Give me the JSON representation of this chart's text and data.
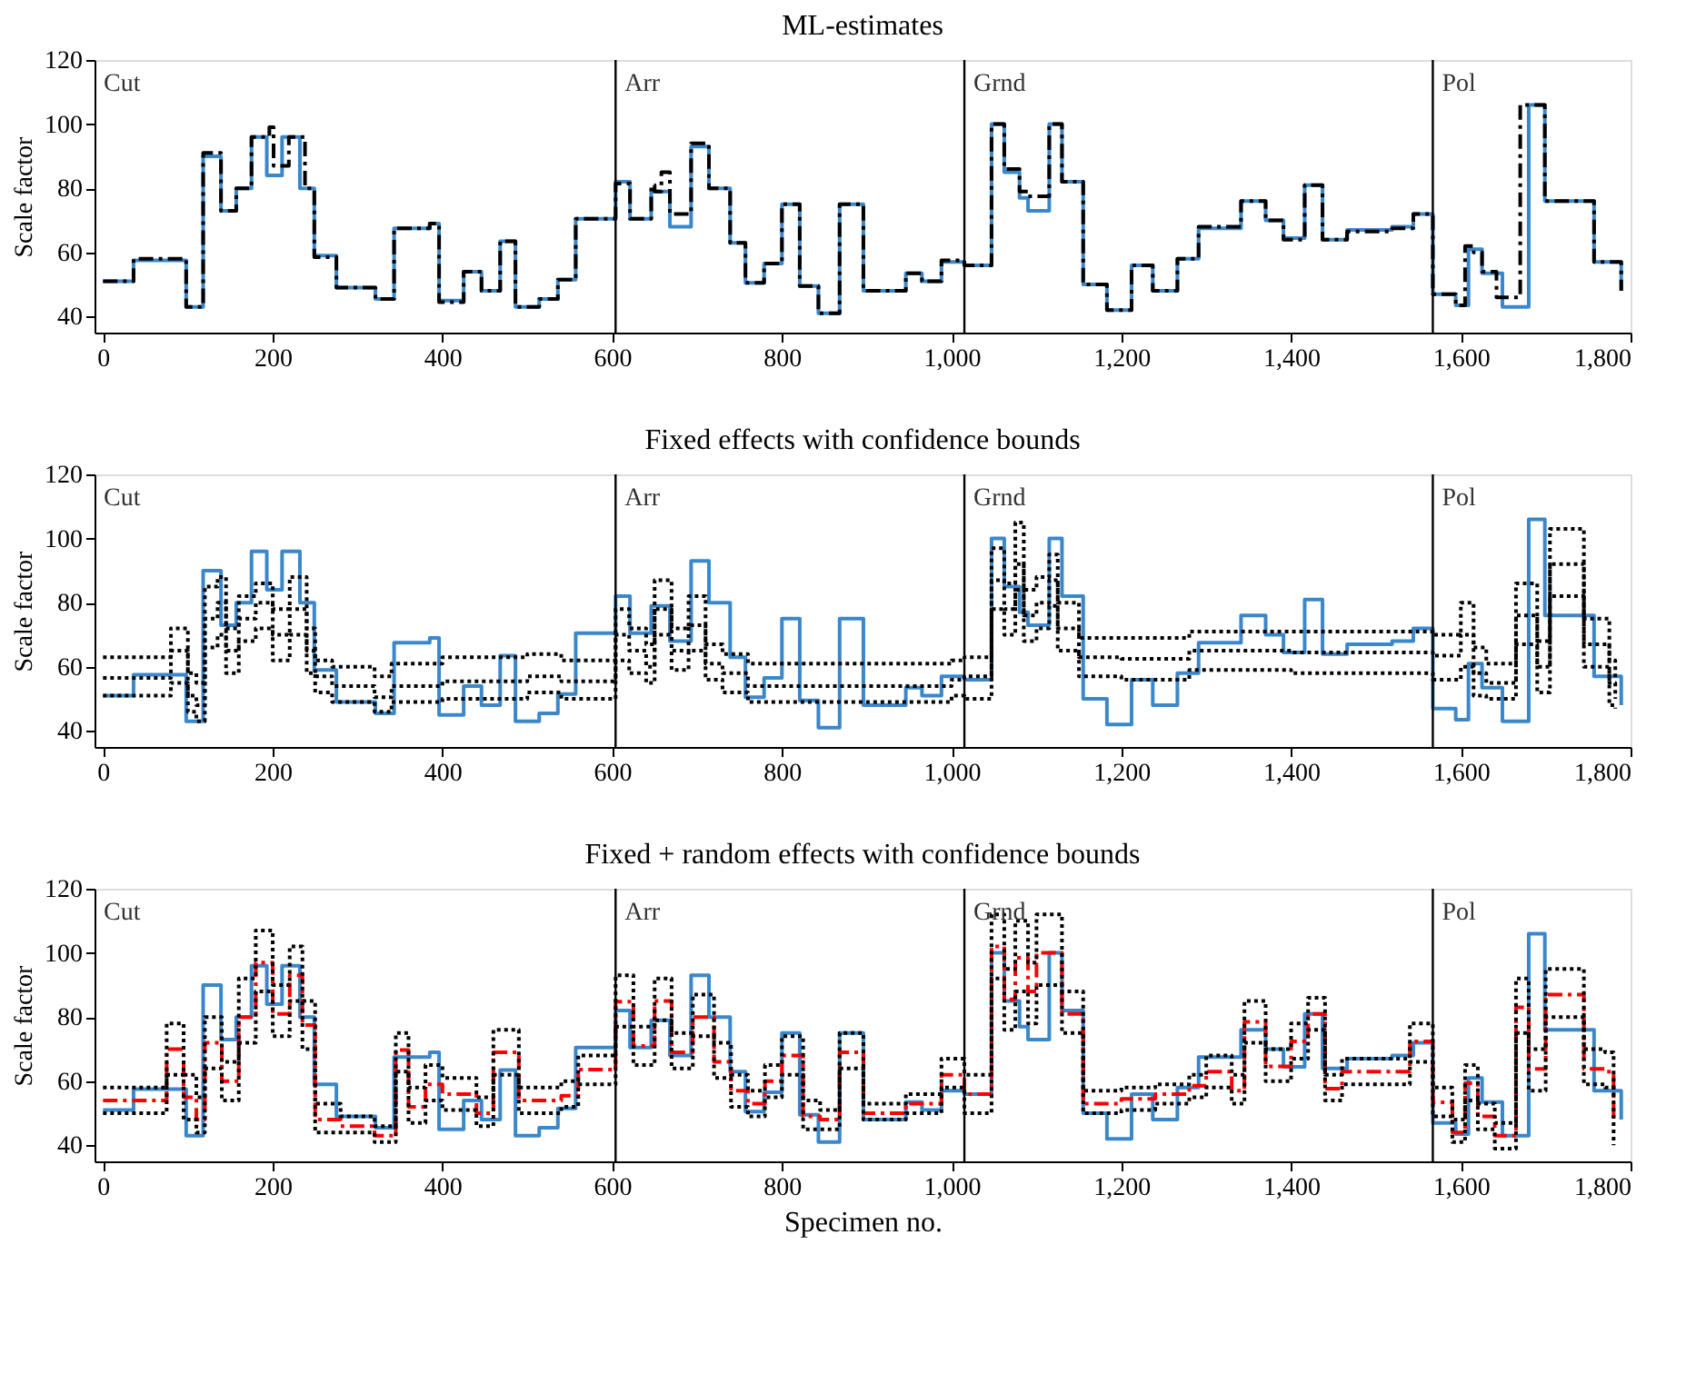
{
  "chart_data": [
    {
      "type": "step",
      "title": "ML-estimates",
      "ylabel": "Scale factor",
      "xlim": [
        -10,
        1800
      ],
      "ylim": [
        35,
        120
      ],
      "xticks": [
        0,
        200,
        400,
        600,
        800,
        {
          "value": 1000,
          "label": "1,000"
        },
        {
          "value": 1200,
          "label": "1,200"
        },
        {
          "value": 1400,
          "label": "1,400"
        },
        {
          "value": 1600,
          "label": "1,600"
        },
        {
          "value": 1800,
          "label": "1,800"
        }
      ],
      "yticks": [
        40,
        60,
        80,
        100,
        120
      ],
      "ref_lines": [
        {
          "axis": "x",
          "value": 604,
          "label": "Arr"
        },
        {
          "axis": "x",
          "value": 1015,
          "label": "Grnd"
        },
        {
          "axis": "x",
          "value": 1567,
          "label": "Pol"
        }
      ],
      "annotations": [
        "Cut"
      ],
      "series": [
        {
          "color": "#3a87cc",
          "line_style": "solid",
          "x": [
            0,
            36,
            98,
            118,
            139,
            157,
            175,
            193,
            211,
            232,
            249,
            275,
            321,
            343,
            385,
            396,
            425,
            446,
            468,
            486,
            514,
            536,
            557,
            604,
            621,
            646,
            668,
            693,
            714,
            739,
            757,
            779,
            800,
            821,
            843,
            868,
            896,
            946,
            965,
            988,
            1015,
            1047,
            1062,
            1080,
            1090,
            1115,
            1130,
            1155,
            1183,
            1212,
            1237,
            1266,
            1291,
            1341,
            1370,
            1391,
            1416,
            1437,
            1466,
            1519,
            1544,
            1567,
            1594,
            1609,
            1625,
            1649,
            1680,
            1699,
            1757,
            1789
          ],
          "values": [
            51,
            57.5,
            43,
            90,
            73,
            80,
            96,
            84,
            96,
            80,
            59,
            49,
            45.5,
            67.5,
            69,
            45,
            54,
            48,
            63.5,
            43,
            45.5,
            51.5,
            70.5,
            82,
            70.5,
            79,
            68,
            93,
            80,
            63,
            50.5,
            56.5,
            75,
            49.5,
            41,
            75,
            48,
            53.5,
            51,
            57,
            56,
            100,
            85,
            77,
            73,
            100,
            82,
            50,
            42,
            56,
            48,
            58,
            67.5,
            76,
            70,
            64.5,
            81,
            64,
            67,
            68,
            72,
            47,
            43.5,
            61,
            53.5,
            43,
            106,
            76,
            57,
            48
          ]
        },
        {
          "color": "#000000",
          "line_style": "dashed",
          "x": [
            0,
            36,
            98,
            118,
            139,
            157,
            175,
            196,
            201,
            219,
            238,
            249,
            275,
            321,
            343,
            385,
            396,
            425,
            446,
            468,
            486,
            514,
            536,
            557,
            604,
            621,
            646,
            650,
            658,
            668,
            693,
            714,
            739,
            757,
            779,
            800,
            821,
            843,
            868,
            896,
            946,
            965,
            988,
            1015,
            1047,
            1062,
            1080,
            1090,
            1115,
            1130,
            1155,
            1183,
            1212,
            1237,
            1266,
            1291,
            1341,
            1370,
            1391,
            1416,
            1437,
            1466,
            1519,
            1544,
            1567,
            1594,
            1605,
            1615,
            1625,
            1642,
            1670,
            1699,
            1757,
            1789
          ],
          "values": [
            51,
            58,
            43,
            91,
            73,
            80,
            96,
            99,
            87,
            96,
            80,
            58.5,
            49,
            45.5,
            67.5,
            69,
            44.5,
            54,
            48,
            63.5,
            43,
            45.5,
            51.5,
            70.5,
            81.5,
            70.5,
            81,
            79,
            85,
            72,
            94,
            80,
            63,
            50.5,
            56.5,
            75,
            49.5,
            41,
            75,
            48,
            53.5,
            51,
            57.5,
            56,
            100,
            86,
            79,
            77.5,
            100,
            82,
            50,
            42,
            56,
            48,
            58,
            68,
            76,
            70,
            64,
            81,
            64,
            66.5,
            67.5,
            72,
            47,
            43.5,
            62,
            60,
            54,
            46,
            106,
            76,
            57,
            48
          ]
        }
      ]
    },
    {
      "type": "step",
      "title": "Fixed effects with confidence bounds",
      "ylabel": "Scale factor",
      "xlim": [
        -10,
        1800
      ],
      "ylim": [
        35,
        120
      ],
      "xticks": [
        0,
        200,
        400,
        600,
        800,
        {
          "value": 1000,
          "label": "1,000"
        },
        {
          "value": 1200,
          "label": "1,200"
        },
        {
          "value": 1400,
          "label": "1,400"
        },
        {
          "value": 1600,
          "label": "1,600"
        },
        {
          "value": 1800,
          "label": "1,800"
        }
      ],
      "yticks": [
        40,
        60,
        80,
        100,
        120
      ],
      "ref_lines": [
        {
          "axis": "x",
          "value": 604,
          "label": "Arr"
        },
        {
          "axis": "x",
          "value": 1015,
          "label": "Grnd"
        },
        {
          "axis": "x",
          "value": 1567,
          "label": "Pol"
        }
      ],
      "annotations": [
        "Cut"
      ],
      "series": [
        {
          "color": "#3a87cc",
          "line_style": "solid",
          "x": [
            0,
            36,
            98,
            118,
            139,
            157,
            175,
            193,
            211,
            232,
            249,
            275,
            321,
            343,
            385,
            396,
            425,
            446,
            468,
            486,
            514,
            536,
            557,
            604,
            621,
            646,
            668,
            693,
            714,
            739,
            757,
            779,
            800,
            821,
            843,
            868,
            896,
            946,
            965,
            988,
            1015,
            1047,
            1062,
            1080,
            1090,
            1115,
            1130,
            1155,
            1183,
            1212,
            1237,
            1266,
            1291,
            1341,
            1370,
            1391,
            1416,
            1437,
            1466,
            1519,
            1544,
            1567,
            1594,
            1609,
            1625,
            1649,
            1680,
            1699,
            1757,
            1789
          ],
          "values": [
            51,
            57.5,
            43,
            90,
            73,
            80,
            96,
            84,
            96,
            80,
            59,
            49,
            45.5,
            67.5,
            69,
            45,
            54,
            48,
            63.5,
            43,
            45.5,
            51.5,
            70.5,
            82,
            70.5,
            79,
            68,
            93,
            80,
            63,
            50.5,
            56.5,
            75,
            49.5,
            41,
            75,
            48,
            53.5,
            51,
            57,
            56,
            100,
            85,
            77,
            73,
            100,
            82,
            50,
            42,
            56,
            48,
            58,
            67.5,
            76,
            70,
            64.5,
            81,
            64,
            67,
            68,
            72,
            47,
            43.5,
            61,
            53.5,
            43,
            106,
            76,
            57,
            48
          ]
        },
        {
          "color": "#000000",
          "line_style": "dotted",
          "x": [
            0,
            80,
            100,
            110,
            120,
            135,
            145,
            160,
            180,
            200,
            220,
            240,
            250,
            270,
            320,
            340,
            400,
            500,
            540,
            604,
            620,
            640,
            650,
            670,
            690,
            710,
            730,
            760,
            1000,
            1015,
            1047,
            1062,
            1075,
            1085,
            1100,
            1115,
            1125,
            1150,
            1200,
            1280,
            1400,
            1567,
            1600,
            1615,
            1630,
            1665,
            1690,
            1705,
            1745,
            1775,
            1782
          ],
          "values": [
            56.5,
            65,
            51,
            48,
            75,
            80,
            65,
            75,
            80,
            70,
            78,
            65,
            57,
            54,
            50.5,
            54,
            55.5,
            57,
            55.5,
            70,
            65,
            60,
            78,
            65,
            73,
            61,
            58,
            54,
            56,
            57,
            87,
            78,
            92,
            76,
            80,
            87,
            72,
            63,
            62.5,
            65,
            64.5,
            63.5,
            70,
            58,
            55,
            76,
            60,
            92,
            67,
            55,
            50
          ]
        },
        {
          "color": "#000000",
          "line_style": "dotted",
          "x": [
            0,
            80,
            100,
            110,
            120,
            135,
            145,
            160,
            180,
            200,
            220,
            240,
            250,
            270,
            320,
            340,
            400,
            500,
            540,
            604,
            620,
            640,
            650,
            670,
            690,
            710,
            730,
            760,
            1000,
            1015,
            1047,
            1062,
            1075,
            1085,
            1100,
            1115,
            1125,
            1150,
            1200,
            1280,
            1400,
            1567,
            1600,
            1615,
            1630,
            1665,
            1690,
            1705,
            1745,
            1775,
            1782
          ],
          "values": [
            51,
            55,
            46,
            43,
            66,
            70,
            58,
            68,
            72,
            62,
            70,
            58,
            52,
            49,
            46,
            49,
            50,
            52,
            50,
            62,
            58,
            55,
            70,
            59,
            65,
            56,
            52,
            49,
            51,
            50,
            78,
            70,
            84,
            68,
            72,
            79,
            65,
            57,
            56,
            59,
            58,
            56,
            60,
            51,
            50,
            67,
            52,
            82,
            60,
            48,
            47
          ]
        },
        {
          "color": "#000000",
          "line_style": "dotted",
          "x": [
            0,
            80,
            100,
            110,
            120,
            135,
            145,
            160,
            180,
            200,
            220,
            240,
            250,
            270,
            320,
            340,
            400,
            500,
            540,
            604,
            620,
            640,
            650,
            670,
            690,
            710,
            730,
            760,
            1000,
            1015,
            1047,
            1062,
            1075,
            1085,
            1100,
            1115,
            1125,
            1150,
            1200,
            1280,
            1400,
            1567,
            1600,
            1615,
            1630,
            1665,
            1690,
            1705,
            1745,
            1775,
            1782
          ],
          "values": [
            63,
            72,
            58,
            55,
            85,
            88,
            72,
            82,
            86,
            78,
            88,
            72,
            62,
            60,
            57,
            61,
            63,
            64,
            62,
            78,
            72,
            67,
            87,
            72,
            82,
            67,
            64,
            61,
            62,
            63,
            97,
            86,
            105,
            84,
            88,
            95,
            80,
            69,
            69,
            71,
            71,
            70,
            80,
            66,
            61,
            86,
            68,
            103,
            75,
            62,
            56
          ]
        }
      ]
    },
    {
      "type": "step",
      "title": "Fixed + random effects with confidence bounds",
      "ylabel": "Scale factor",
      "xlabel": "Specimen no.",
      "xlim": [
        -10,
        1800
      ],
      "ylim": [
        35,
        120
      ],
      "xticks": [
        0,
        200,
        400,
        600,
        800,
        {
          "value": 1000,
          "label": "1,000"
        },
        {
          "value": 1200,
          "label": "1,200"
        },
        {
          "value": 1400,
          "label": "1,400"
        },
        {
          "value": 1600,
          "label": "1,600"
        },
        {
          "value": 1800,
          "label": "1,800"
        }
      ],
      "yticks": [
        40,
        60,
        80,
        100,
        120
      ],
      "ref_lines": [
        {
          "axis": "x",
          "value": 604,
          "label": "Arr"
        },
        {
          "axis": "x",
          "value": 1015,
          "label": "Grnd"
        },
        {
          "axis": "x",
          "value": 1567,
          "label": "Pol"
        }
      ],
      "annotations": [
        "Cut"
      ],
      "series": [
        {
          "color": "#3a87cc",
          "line_style": "solid",
          "x": [
            0,
            36,
            98,
            118,
            139,
            157,
            175,
            193,
            211,
            232,
            249,
            275,
            321,
            343,
            385,
            396,
            425,
            446,
            468,
            486,
            514,
            536,
            557,
            604,
            621,
            646,
            668,
            693,
            714,
            739,
            757,
            779,
            800,
            821,
            843,
            868,
            896,
            946,
            965,
            988,
            1015,
            1047,
            1062,
            1080,
            1090,
            1115,
            1130,
            1155,
            1183,
            1212,
            1237,
            1266,
            1291,
            1341,
            1370,
            1391,
            1416,
            1437,
            1466,
            1519,
            1544,
            1567,
            1594,
            1609,
            1625,
            1649,
            1680,
            1699,
            1757,
            1789
          ],
          "values": [
            51,
            57.5,
            43,
            90,
            73,
            80,
            96,
            84,
            96,
            80,
            59,
            49,
            45.5,
            67.5,
            69,
            45,
            54,
            48,
            63.5,
            43,
            45.5,
            51.5,
            70.5,
            82,
            70.5,
            79,
            68,
            93,
            80,
            63,
            50.5,
            56.5,
            75,
            49.5,
            41,
            75,
            48,
            53.5,
            51,
            57,
            56,
            100,
            85,
            77,
            73,
            100,
            82,
            50,
            42,
            56,
            48,
            58,
            67.5,
            76,
            70,
            64.5,
            81,
            64,
            67,
            68,
            72,
            47,
            43.5,
            61,
            53.5,
            43,
            106,
            76,
            57,
            48
          ]
        },
        {
          "color": "#ff0000",
          "line_style": "dashed",
          "x": [
            0,
            75,
            95,
            110,
            120,
            140,
            160,
            180,
            200,
            220,
            235,
            250,
            280,
            320,
            345,
            360,
            380,
            400,
            440,
            460,
            490,
            540,
            560,
            604,
            625,
            650,
            670,
            695,
            720,
            740,
            760,
            780,
            800,
            825,
            845,
            868,
            896,
            946,
            988,
            1015,
            1047,
            1062,
            1075,
            1090,
            1100,
            1130,
            1155,
            1200,
            1240,
            1280,
            1300,
            1330,
            1345,
            1370,
            1400,
            1420,
            1440,
            1460,
            1540,
            1567,
            1590,
            1605,
            1620,
            1640,
            1665,
            1680,
            1700,
            1745,
            1770,
            1780
          ],
          "values": [
            54,
            70,
            55,
            48,
            72,
            60,
            80,
            97,
            81,
            93,
            77.5,
            48,
            46,
            43,
            69.7,
            52,
            59,
            56,
            50,
            69,
            54,
            55.5,
            63.6,
            84.8,
            71,
            85,
            69,
            80,
            66,
            57,
            53,
            60,
            68,
            49,
            48,
            69,
            50,
            53,
            62,
            56,
            102,
            85.5,
            98.5,
            88,
            100,
            81,
            53,
            54.5,
            56,
            58.6,
            63,
            57,
            78.5,
            64.6,
            72.4,
            81,
            57.7,
            63,
            72.4,
            53.4,
            44,
            59.4,
            49,
            43,
            83,
            63.8,
            87,
            63.8,
            63,
            48
          ]
        },
        {
          "color": "#000000",
          "line_style": "dotted",
          "x": [
            0,
            75,
            95,
            110,
            120,
            140,
            160,
            180,
            200,
            220,
            235,
            250,
            280,
            320,
            345,
            360,
            380,
            400,
            440,
            460,
            490,
            540,
            560,
            604,
            625,
            650,
            670,
            695,
            720,
            740,
            760,
            780,
            800,
            825,
            845,
            868,
            896,
            946,
            988,
            1015,
            1047,
            1062,
            1075,
            1090,
            1100,
            1130,
            1155,
            1200,
            1240,
            1280,
            1300,
            1330,
            1345,
            1370,
            1400,
            1420,
            1440,
            1460,
            1540,
            1567,
            1590,
            1605,
            1620,
            1640,
            1665,
            1680,
            1700,
            1745,
            1770,
            1780
          ],
          "values": [
            50,
            62,
            48,
            44,
            64,
            54,
            72,
            88,
            74,
            85,
            70,
            44,
            44,
            41,
            63,
            47,
            54,
            51,
            46,
            62,
            50,
            52,
            59,
            77,
            65,
            79,
            64,
            74,
            61,
            52,
            49,
            55,
            62,
            45,
            45,
            64,
            48,
            50,
            58,
            50,
            92,
            76,
            88,
            78,
            90,
            75,
            50,
            51,
            53,
            55,
            58,
            53,
            72,
            60,
            67,
            76,
            54,
            59,
            66,
            49,
            41,
            54,
            45,
            39,
            75,
            57,
            80,
            59,
            58,
            40
          ]
        },
        {
          "color": "#000000",
          "line_style": "dotted",
          "x": [
            0,
            75,
            95,
            110,
            120,
            140,
            160,
            180,
            200,
            220,
            235,
            250,
            280,
            320,
            345,
            360,
            380,
            400,
            440,
            460,
            490,
            540,
            560,
            604,
            625,
            650,
            670,
            695,
            720,
            740,
            760,
            780,
            800,
            825,
            845,
            868,
            896,
            946,
            988,
            1015,
            1047,
            1062,
            1075,
            1090,
            1100,
            1130,
            1155,
            1200,
            1240,
            1280,
            1300,
            1330,
            1345,
            1370,
            1400,
            1420,
            1440,
            1460,
            1540,
            1567,
            1590,
            1605,
            1620,
            1640,
            1665,
            1680,
            1700,
            1745,
            1770,
            1780
          ],
          "values": [
            58,
            78,
            62,
            55,
            80,
            66,
            92,
            107,
            90,
            102,
            85,
            53,
            49,
            46,
            75,
            58,
            65,
            61,
            55,
            76,
            58,
            60,
            68,
            93,
            77,
            92,
            75,
            87,
            72,
            62,
            57,
            65,
            74,
            54,
            51,
            75,
            53,
            56,
            67,
            62,
            112,
            95,
            110,
            97,
            112,
            88,
            57,
            58,
            59,
            62,
            68,
            62,
            85,
            70,
            78,
            86,
            62,
            67,
            78,
            58,
            48,
            65,
            53,
            47,
            92,
            70,
            95,
            70,
            69,
            56
          ]
        }
      ]
    }
  ]
}
